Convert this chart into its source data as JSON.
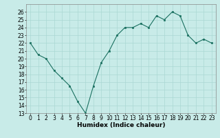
{
  "x": [
    0,
    1,
    2,
    3,
    4,
    5,
    6,
    7,
    8,
    9,
    10,
    11,
    12,
    13,
    14,
    15,
    16,
    17,
    18,
    19,
    20,
    21,
    22,
    23
  ],
  "y": [
    22,
    20.5,
    20,
    18.5,
    17.5,
    16.5,
    14.5,
    13,
    16.5,
    19.5,
    21,
    23,
    24,
    24,
    24.5,
    24,
    25.5,
    25,
    26,
    25.5,
    23,
    22,
    22.5,
    22
  ],
  "line_color": "#1a7060",
  "marker": "s",
  "marker_size": 2.0,
  "bg_color": "#c8ebe8",
  "grid_color": "#aad8d3",
  "xlabel": "Humidex (Indice chaleur)",
  "xlim": [
    -0.5,
    23.5
  ],
  "ylim": [
    13,
    27
  ],
  "yticks": [
    13,
    14,
    15,
    16,
    17,
    18,
    19,
    20,
    21,
    22,
    23,
    24,
    25,
    26
  ],
  "xticks": [
    0,
    1,
    2,
    3,
    4,
    5,
    6,
    7,
    8,
    9,
    10,
    11,
    12,
    13,
    14,
    15,
    16,
    17,
    18,
    19,
    20,
    21,
    22,
    23
  ],
  "label_fontsize": 6.5,
  "tick_fontsize": 5.5
}
